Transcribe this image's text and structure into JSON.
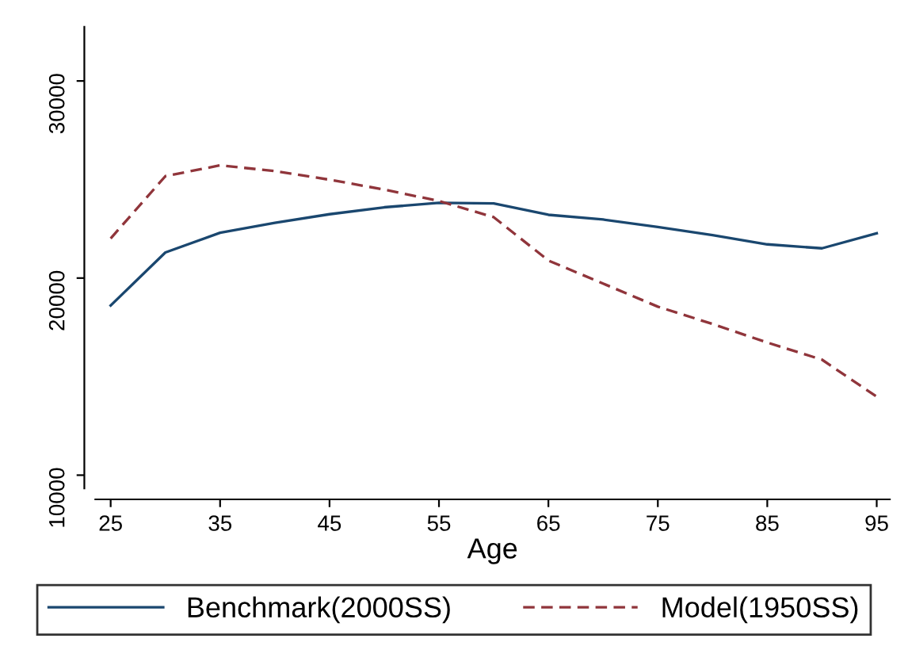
{
  "chart_data": {
    "type": "line",
    "xlabel": "Age",
    "x": [
      25,
      30,
      35,
      40,
      45,
      50,
      55,
      60,
      65,
      70,
      75,
      80,
      85,
      90,
      95
    ],
    "series": [
      {
        "name": "Benchmark(2000SS)",
        "color": "#1a476f",
        "line_style": "solid",
        "values": [
          18610,
          21300,
          22300,
          22800,
          23240,
          23590,
          23820,
          23790,
          23210,
          22970,
          22590,
          22180,
          21710,
          21510,
          22270
        ]
      },
      {
        "name": "Model(1950SS)",
        "color": "#90353b",
        "line_style": "dashed",
        "values": [
          22010,
          25170,
          25720,
          25430,
          24990,
          24490,
          23910,
          23090,
          20890,
          19720,
          18550,
          17670,
          16730,
          15860,
          13980
        ]
      }
    ],
    "xlim": [
      23.6,
      96.2
    ],
    "ylim": [
      9330,
      32750
    ],
    "xticks": [
      25,
      35,
      45,
      55,
      65,
      75,
      85,
      95
    ],
    "yticks": [
      10000,
      20000,
      30000
    ],
    "grid": false,
    "legend": "bottom"
  }
}
